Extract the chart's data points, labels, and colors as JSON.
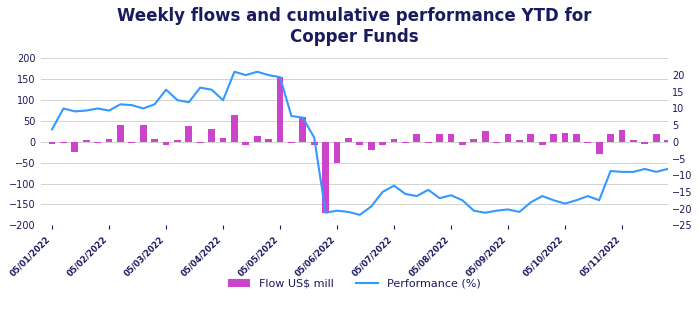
{
  "title": "Weekly flows and cumulative performance YTD for\nCopper Funds",
  "title_fontsize": 12,
  "title_color": "#1a1a5e",
  "title_fontweight": "bold",
  "legend_flow_label": "Flow US$ mill",
  "legend_perf_label": "Performance (%)",
  "bar_color": "#cc44cc",
  "line_color": "#3399ff",
  "background_color": "#ffffff",
  "grid_color": "#cccccc",
  "ylim_left": [
    -200,
    220
  ],
  "ylim_right": [
    -25,
    27.5
  ],
  "yticks_left": [
    -200,
    -150,
    -100,
    -50,
    0,
    50,
    100,
    150,
    200
  ],
  "yticks_right": [
    -25,
    -20,
    -15,
    -10,
    -5,
    0,
    5,
    10,
    15,
    20
  ],
  "x_labels": [
    "05/01/2022",
    "05/02/2022",
    "05/03/2022",
    "05/04/2022",
    "05/05/2022",
    "05/06/2022",
    "05/07/2022",
    "05/08/2022",
    "05/09/2022",
    "05/10/2022",
    "05/11/2022"
  ],
  "x_label_color": "#1a1a5e",
  "tick_color": "#1a1a5e",
  "flow_values": [
    -5,
    -3,
    -25,
    5,
    -3,
    8,
    40,
    -3,
    40,
    8,
    -8,
    5,
    38,
    -3,
    30,
    10,
    65,
    -8,
    15,
    8,
    155,
    -3,
    60,
    -8,
    -170,
    -50,
    10,
    -8,
    -20,
    -8,
    8,
    -3,
    20,
    -3,
    18,
    18,
    -8,
    8,
    25,
    -3,
    20,
    5,
    18,
    -8,
    20,
    22,
    18,
    -3,
    -30,
    18,
    28,
    5,
    -5,
    18,
    5
  ],
  "perf_values": [
    30,
    80,
    73,
    75,
    80,
    75,
    90,
    88,
    80,
    90,
    125,
    100,
    95,
    130,
    125,
    100,
    168,
    160,
    168,
    160,
    155,
    62,
    58,
    10,
    -170,
    -165,
    -168,
    -175,
    -155,
    -120,
    -105,
    -125,
    -130,
    -115,
    -135,
    -128,
    -140,
    -165,
    -170,
    -165,
    -162,
    -168,
    -145,
    -130,
    -140,
    -148,
    -140,
    -130,
    -140,
    -70,
    -72,
    -72,
    -65,
    -72,
    -65
  ],
  "bar_width": 0.6,
  "x_tick_positions": [
    0,
    5,
    10,
    15,
    20,
    25,
    30,
    35,
    40,
    45,
    50
  ],
  "n_points": 55
}
